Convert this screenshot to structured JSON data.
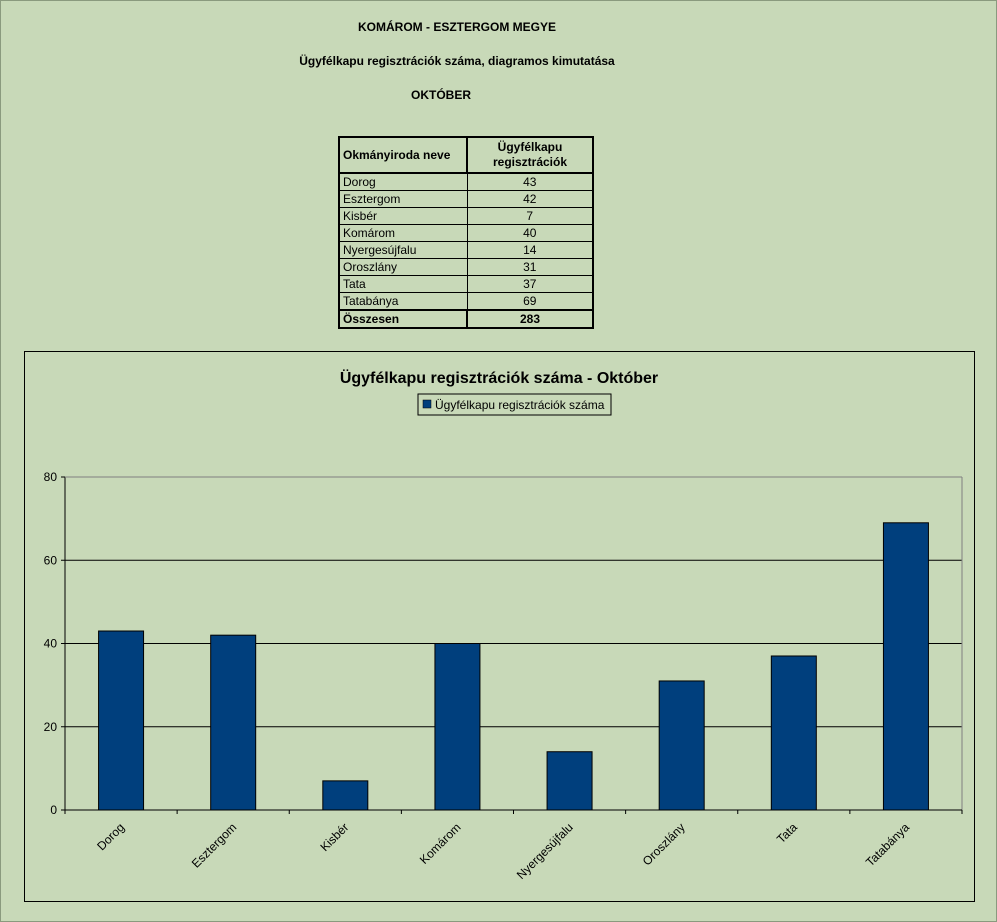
{
  "header": {
    "county": "KOMÁROM - ESZTERGOM MEGYE",
    "subtitle": "Ügyfélkapu regisztrációk száma, diagramos kimutatása",
    "month": "OKTÓBER"
  },
  "table": {
    "col1": "Okmányiroda neve",
    "col2": "Ügyfélkapu regisztrációk",
    "rows": [
      {
        "name": "Dorog",
        "value": "43"
      },
      {
        "name": "Esztergom",
        "value": "42"
      },
      {
        "name": "Kisbér",
        "value": "7"
      },
      {
        "name": "Komárom",
        "value": "40"
      },
      {
        "name": "Nyergesújfalu",
        "value": "14"
      },
      {
        "name": "Oroszlány",
        "value": "31"
      },
      {
        "name": "Tata",
        "value": "37"
      },
      {
        "name": "Tatabánya",
        "value": "69"
      }
    ],
    "total_label": "Összesen",
    "total_value": "283"
  },
  "chart_data": {
    "type": "bar",
    "title": "Ügyfélkapu regisztrációk száma - Október",
    "categories": [
      "Dorog",
      "Esztergom",
      "Kisbér",
      "Komárom",
      "Nyergesújfalu",
      "Oroszlány",
      "Tata",
      "Tatabánya"
    ],
    "series": [
      {
        "name": "Ügyfélkapu regisztrációk száma",
        "values": [
          43,
          42,
          7,
          40,
          14,
          31,
          37,
          69
        ],
        "color": "#003f7d"
      }
    ],
    "ylim": [
      0,
      80
    ],
    "yticks": [
      0,
      20,
      40,
      60,
      80
    ],
    "grid": true,
    "legend": "top-center",
    "background": "#c8d9b8"
  }
}
